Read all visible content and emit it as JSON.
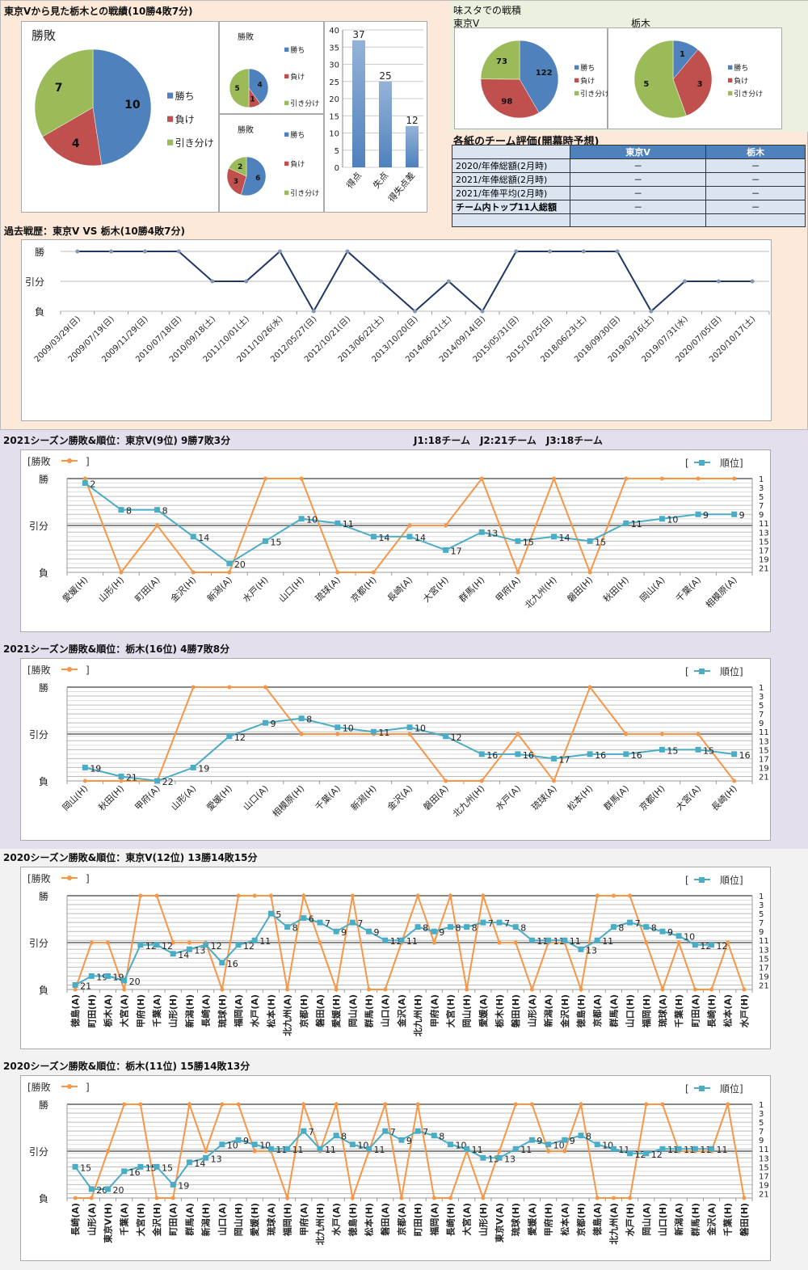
{
  "top": {
    "title": "東京Vから見た栃木との戦績(10勝4敗7分)",
    "pie_title": "勝敗",
    "legend": [
      "勝ち",
      "負け",
      "引き分け"
    ],
    "colors": {
      "win": "#4f81bd",
      "loss": "#c0504d",
      "draw": "#9bbb59",
      "result_line": "#f79646",
      "rank_line": "#4bacc6",
      "history_line": "#1f3864"
    }
  },
  "stadium": {
    "title": "味スタでの戦積",
    "tokyo_label": "東京V",
    "tochigi_label": "栃木"
  },
  "evaluation": {
    "title": "各紙のチーム評価(開幕時予想)",
    "columns": [
      "",
      "東京V",
      "栃木"
    ],
    "rows": [
      {
        "label": "2020/年俸総額(2月時)",
        "tokyo": "－",
        "tochigi": "－"
      },
      {
        "label": "2021/年俸総額(2月時)",
        "tokyo": "－",
        "tochigi": "－"
      },
      {
        "label": "2021/年俸平均(2月時)",
        "tokyo": "－",
        "tochigi": "－"
      },
      {
        "label": "チーム内トップ11人総額",
        "tokyo": "－",
        "tochigi": "－"
      },
      {
        "label": "",
        "tokyo": "",
        "tochigi": ""
      }
    ]
  },
  "history": {
    "title": "過去戦歴：東京V VS 栃木(10勝4敗7分)"
  },
  "s2021": {
    "tokyo_title": "2021シーズン勝敗&順位：東京V(9位) 9勝7敗3分",
    "league_note": "J1:18チーム　J2:21チーム　J3:18チーム",
    "tochigi_title": "2021シーズン勝敗&順位：栃木(16位) 4勝7敗8分"
  },
  "s2020": {
    "tokyo_title": "2020シーズン勝敗&順位：東京V(12位) 13勝14敗15分",
    "tochigi_title": "2020シーズン勝敗&順位：栃木(11位) 15勝14敗13分"
  },
  "legend_labels": {
    "result": "[勝敗",
    "result_close": "]",
    "rank_open": "[",
    "rank": "順位]"
  },
  "result_axis": [
    "勝",
    "引分",
    "負"
  ],
  "chart_data": [
    {
      "id": "h2h_pie",
      "type": "pie",
      "title": "勝敗",
      "categories": [
        "勝ち",
        "負け",
        "引き分け"
      ],
      "values": [
        10,
        4,
        7
      ]
    },
    {
      "id": "home_pie",
      "type": "pie",
      "title": "勝敗",
      "categories": [
        "勝ち",
        "負け",
        "引き分け"
      ],
      "values": [
        4,
        1,
        5
      ]
    },
    {
      "id": "away_pie",
      "type": "pie",
      "title": "勝敗",
      "categories": [
        "勝ち",
        "負け",
        "引き分け"
      ],
      "values": [
        6,
        3,
        2
      ]
    },
    {
      "id": "goals_bar",
      "type": "bar",
      "categories": [
        "得点",
        "失点",
        "得失点差"
      ],
      "values": [
        37,
        25,
        12
      ],
      "ylim": [
        0,
        40
      ],
      "yticks": [
        0,
        5,
        10,
        15,
        20,
        25,
        30,
        35,
        40
      ]
    },
    {
      "id": "stadium_tokyo_pie",
      "type": "pie",
      "title": "東京V",
      "categories": [
        "勝ち",
        "負け",
        "引き分け"
      ],
      "values": [
        122,
        98,
        73
      ]
    },
    {
      "id": "stadium_tochigi_pie",
      "type": "pie",
      "title": "栃木",
      "categories": [
        "勝ち",
        "負け",
        "引き分け"
      ],
      "values": [
        1,
        3,
        5
      ]
    },
    {
      "id": "history_line",
      "type": "line",
      "title": "過去戦歴：東京V VS 栃木(10勝4敗7分)",
      "yticks": [
        "勝",
        "引分",
        "負"
      ],
      "x": [
        "2009/03/29(日)",
        "2009/07/19(日)",
        "2009/11/29(日)",
        "2010/07/18(日)",
        "2010/09/18(土)",
        "2011/10/01(土)",
        "2011/10/26(水)",
        "2012/05/27(日)",
        "2012/10/21(日)",
        "2013/06/22(土)",
        "2013/10/20(日)",
        "2014/06/21(土)",
        "2014/09/14(日)",
        "2015/05/31(日)",
        "2015/10/25(日)",
        "2018/06/23(土)",
        "2018/09/30(日)",
        "2019/03/16(土)",
        "2019/07/31(水)",
        "2020/07/05(日)",
        "2020/10/17(土)"
      ],
      "results": [
        "W",
        "W",
        "W",
        "W",
        "D",
        "D",
        "W",
        "L",
        "W",
        "D",
        "L",
        "D",
        "L",
        "W",
        "W",
        "W",
        "W",
        "L",
        "D",
        "D",
        "D"
      ]
    },
    {
      "id": "tokyo_2021",
      "type": "line",
      "title": "2021シーズン勝敗&順位：東京V(9位) 9勝7敗3分",
      "x": [
        "愛媛(H)",
        "山形(H)",
        "町田(A)",
        "金沢(H)",
        "新潟(A)",
        "水戸(H)",
        "山口(H)",
        "琉球(A)",
        "京都(H)",
        "長崎(A)",
        "大宮(H)",
        "群馬(H)",
        "甲府(A)",
        "北九州(H)",
        "磐田(H)",
        "秋田(H)",
        "岡山(A)",
        "千葉(A)",
        "相模原(A)"
      ],
      "results": [
        "W",
        "L",
        "D",
        "L",
        "L",
        "W",
        "W",
        "L",
        "L",
        "D",
        "D",
        "W",
        "L",
        "W",
        "L",
        "W",
        "W",
        "W",
        "W"
      ],
      "ranks": [
        2,
        8,
        8,
        14,
        20,
        15,
        10,
        11,
        14,
        14,
        17,
        13,
        15,
        14,
        15,
        11,
        10,
        9,
        9
      ],
      "rank_ticks": [
        1,
        3,
        5,
        7,
        9,
        11,
        13,
        15,
        17,
        19,
        21
      ],
      "rank_max": 21
    },
    {
      "id": "tochigi_2021",
      "type": "line",
      "title": "2021シーズン勝敗&順位：栃木(16位) 4勝7敗8分",
      "x": [
        "岡山(H)",
        "秋田(H)",
        "甲府(A)",
        "山形(A)",
        "愛媛(H)",
        "山口(A)",
        "相模原(H)",
        "千葉(A)",
        "新潟(H)",
        "金沢(A)",
        "磐田(A)",
        "北九州(H)",
        "水戸(A)",
        "琉球(A)",
        "松本(H)",
        "群馬(A)",
        "京都(H)",
        "大宮(A)",
        "長崎(H)"
      ],
      "results": [
        "L",
        "L",
        "L",
        "W",
        "W",
        "W",
        "D",
        "D",
        "D",
        "D",
        "L",
        "L",
        "D",
        "L",
        "W",
        "D",
        "D",
        "D",
        "L"
      ],
      "ranks": [
        19,
        21,
        22,
        19,
        12,
        9,
        8,
        10,
        11,
        10,
        12,
        16,
        16,
        17,
        16,
        16,
        15,
        15,
        16
      ],
      "rank_ticks": [
        1,
        3,
        5,
        7,
        9,
        11,
        13,
        15,
        17,
        19,
        21
      ],
      "rank_max": 22
    },
    {
      "id": "tokyo_2020",
      "type": "line",
      "title": "2020シーズン勝敗&順位：東京V(12位) 13勝14敗15分",
      "x": [
        "徳島(A)",
        "町田(H)",
        "栃木(A)",
        "大宮(A)",
        "甲府(H)",
        "千葉(A)",
        "山形(H)",
        "新潟(H)",
        "長崎(A)",
        "琉球(H)",
        "福岡(A)",
        "水戸(A)",
        "松本(H)",
        "北九州(A)",
        "京都(H)",
        "磐田(A)",
        "愛媛(H)",
        "岡山(A)",
        "群馬(H)",
        "山口(A)",
        "金沢(A)",
        "北九州(H)",
        "甲府(A)",
        "大宮(H)",
        "岡山(H)",
        "愛媛(A)",
        "栃木(H)",
        "磐田(H)",
        "山形(A)",
        "新潟(A)",
        "金沢(H)",
        "徳島(H)",
        "京都(A)",
        "群馬(A)",
        "山口(H)",
        "福岡(H)",
        "琉球(A)",
        "千葉(H)",
        "町田(A)",
        "長崎(H)",
        "松本(A)",
        "水戸(H)"
      ],
      "results": [
        "L",
        "D",
        "D",
        "L",
        "W",
        "W",
        "D",
        "D",
        "D",
        "L",
        "W",
        "W",
        "W",
        "L",
        "W",
        "D",
        "L",
        "W",
        "L",
        "L",
        "D",
        "W",
        "D",
        "W",
        "L",
        "W",
        "D",
        "D",
        "L",
        "D",
        "D",
        "L",
        "W",
        "W",
        "W",
        "D",
        "L",
        "D",
        "L",
        "L",
        "D",
        "L"
      ],
      "ranks": [
        21,
        19,
        19,
        20,
        12,
        12,
        14,
        13,
        12,
        16,
        12,
        11,
        5,
        8,
        6,
        7,
        9,
        7,
        9,
        11,
        11,
        8,
        9,
        8,
        8,
        7,
        7,
        8,
        11,
        11,
        11,
        13,
        11,
        8,
        7,
        8,
        9,
        10,
        12,
        12,
        null,
        null
      ],
      "rank_ticks": [
        1,
        3,
        5,
        7,
        9,
        11,
        13,
        15,
        17,
        19,
        21
      ],
      "rank_max": 22
    },
    {
      "id": "tochigi_2020",
      "type": "line",
      "title": "2020シーズン勝敗&順位：栃木(11位) 15勝14敗13分",
      "x": [
        "長崎(A)",
        "山形(A)",
        "東京V(H)",
        "千葉(A)",
        "大宮(H)",
        "金沢(H)",
        "町田(A)",
        "群馬(A)",
        "新潟(H)",
        "山口(A)",
        "岡山(H)",
        "愛媛(H)",
        "琉球(A)",
        "福岡(H)",
        "甲府(A)",
        "北九州(H)",
        "水戸(A)",
        "徳島(H)",
        "松本(H)",
        "磐田(A)",
        "京都(A)",
        "町田(H)",
        "福岡(A)",
        "長崎(H)",
        "大宮(A)",
        "山形(H)",
        "東京V(A)",
        "琉球(H)",
        "愛媛(A)",
        "甲府(H)",
        "松本(A)",
        "京都(H)",
        "徳島(A)",
        "北九州(A)",
        "水戸(H)",
        "岡山(A)",
        "山口(H)",
        "新潟(A)",
        "群馬(H)",
        "金沢(A)",
        "千葉(H)",
        "磐田(H)"
      ],
      "results": [
        "L",
        "L",
        "D",
        "W",
        "W",
        "L",
        "L",
        "W",
        "D",
        "W",
        "W",
        "D",
        "D",
        "L",
        "W",
        "D",
        "W",
        "L",
        "D",
        "W",
        "L",
        "W",
        "L",
        "L",
        "D",
        "L",
        "D",
        "W",
        "W",
        "D",
        "D",
        "W",
        "L",
        "L",
        "L",
        "W",
        "W",
        "D",
        "D",
        "D",
        "W",
        "L"
      ],
      "ranks": [
        15,
        20,
        20,
        16,
        15,
        15,
        19,
        14,
        13,
        10,
        9,
        10,
        11,
        11,
        7,
        11,
        8,
        10,
        11,
        7,
        9,
        7,
        8,
        10,
        11,
        13,
        13,
        11,
        9,
        10,
        9,
        8,
        10,
        11,
        12,
        12,
        11,
        11,
        11,
        11,
        null,
        null
      ],
      "rank_ticks": [
        1,
        3,
        5,
        7,
        9,
        11,
        13,
        15,
        17,
        19,
        21
      ],
      "rank_max": 22
    }
  ]
}
